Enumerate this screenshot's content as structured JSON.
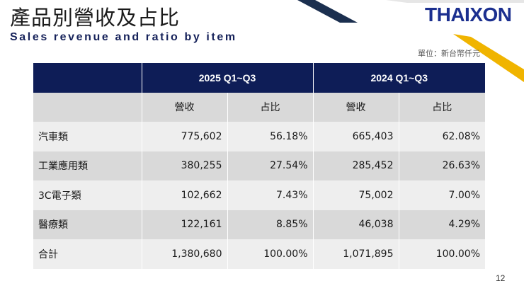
{
  "header": {
    "title_zh": "產品別營收及占比",
    "title_en": "Sales revenue and ratio by item",
    "logo_text": "THAIXON",
    "unit": "單位：新台幣仟元"
  },
  "colors": {
    "header_bg": "#0e1d57",
    "row_dark": "#d9d9d9",
    "row_light": "#eeeeee",
    "accent_navy": "#1b2f4f",
    "accent_gold": "#f0b400"
  },
  "table": {
    "periods": [
      "2025 Q1~Q3",
      "2024 Q1~Q3"
    ],
    "subheaders": [
      "營收",
      "占比",
      "營收",
      "占比"
    ],
    "rows": [
      {
        "category": "汽車類",
        "rev_2025": "775,602",
        "ratio_2025": "56.18%",
        "rev_2024": "665,403",
        "ratio_2024": "62.08%"
      },
      {
        "category": "工業應用類",
        "rev_2025": "380,255",
        "ratio_2025": "27.54%",
        "rev_2024": "285,452",
        "ratio_2024": "26.63%"
      },
      {
        "category": "3C電子類",
        "rev_2025": "102,662",
        "ratio_2025": "7.43%",
        "rev_2024": "75,002",
        "ratio_2024": "7.00%"
      },
      {
        "category": "醫療類",
        "rev_2025": "122,161",
        "ratio_2025": "8.85%",
        "rev_2024": "46,038",
        "ratio_2024": "4.29%"
      },
      {
        "category": "合計",
        "rev_2025": "1,380,680",
        "ratio_2025": "100.00%",
        "rev_2024": "1,071,895",
        "ratio_2024": "100.00%"
      }
    ]
  },
  "page_number": "12"
}
